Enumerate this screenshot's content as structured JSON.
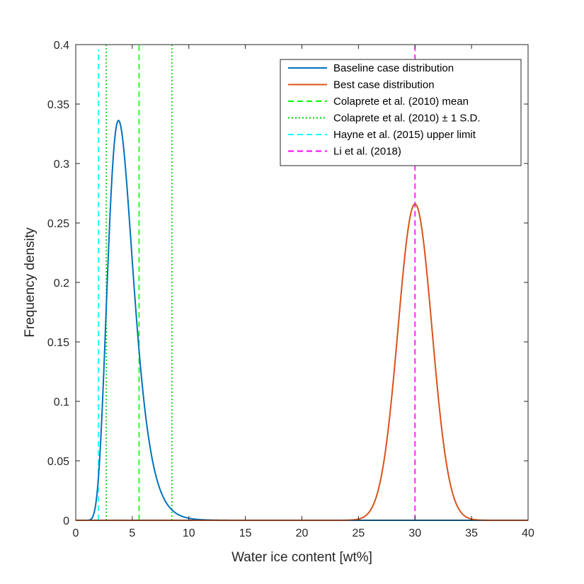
{
  "chart_data": {
    "type": "line",
    "title": "",
    "xlabel": "Water ice content [wt%]",
    "ylabel": "Frequency density",
    "xlim": [
      0,
      40
    ],
    "ylim": [
      0,
      0.4
    ],
    "xticks": [
      0,
      5,
      10,
      15,
      20,
      25,
      30,
      35,
      40
    ],
    "xtick_labels": [
      "0",
      "5",
      "10",
      "15",
      "20",
      "25",
      "30",
      "35",
      "40"
    ],
    "yticks": [
      0,
      0.05,
      0.1,
      0.15,
      0.2,
      0.25,
      0.3,
      0.35,
      0.4
    ],
    "ytick_labels": [
      "0",
      "0.05",
      "0.1",
      "0.15",
      "0.2",
      "0.25",
      "0.3",
      "0.35",
      "0.4"
    ],
    "grid": false,
    "legend_position": "top-right",
    "series": [
      {
        "name": "Baseline case distribution",
        "color": "#0072BD",
        "style": "solid",
        "distribution": "lognormal",
        "mu": 1.42,
        "sigma": 0.3,
        "x_range": [
          0,
          40
        ],
        "peak": {
          "x": 3.7,
          "y": 0.347
        }
      },
      {
        "name": "Best case distribution",
        "color": "#D95319",
        "style": "solid",
        "distribution": "normal",
        "mean": 30,
        "sd": 1.5,
        "x_range": [
          0,
          40
        ],
        "peak": {
          "x": 30,
          "y": 0.266
        }
      }
    ],
    "vertical_lines": [
      {
        "name": "Colaprete et al. (2010) mean",
        "x": 5.6,
        "color": "#00FF00",
        "style": "dashed",
        "y_top": 0.4
      },
      {
        "name": "Colaprete et al. (2010) ± 1 S.D.",
        "x": 2.7,
        "color": "#00CC00",
        "style": "dotted",
        "y_top": 0.4
      },
      {
        "name": "Colaprete et al. (2010) ± 1 S.D.",
        "x": 8.5,
        "color": "#00CC00",
        "style": "dotted",
        "y_top": 0.4
      },
      {
        "name": "Hayne et al. (2015) upper limit",
        "x": 2.0,
        "color": "#00FFFF",
        "style": "dashed",
        "y_top": 0.396
      },
      {
        "name": "Li et al. (2018)",
        "x": 30,
        "color": "#FF00FF",
        "style": "dashed",
        "y_top": 0.4
      }
    ],
    "legend": [
      {
        "label": "Baseline case distribution",
        "color": "#0072BD",
        "style": "solid"
      },
      {
        "label": "Best case distribution",
        "color": "#D95319",
        "style": "solid"
      },
      {
        "label": "Colaprete et al. (2010) mean",
        "color": "#00FF00",
        "style": "dashed"
      },
      {
        "label": "Colaprete et al. (2010) ± 1 S.D.",
        "color": "#00CC00",
        "style": "dotted"
      },
      {
        "label": "Hayne et al. (2015) upper limit",
        "color": "#00FFFF",
        "style": "dashed"
      },
      {
        "label": "Li et al. (2018)",
        "color": "#FF00FF",
        "style": "dashed"
      }
    ]
  }
}
